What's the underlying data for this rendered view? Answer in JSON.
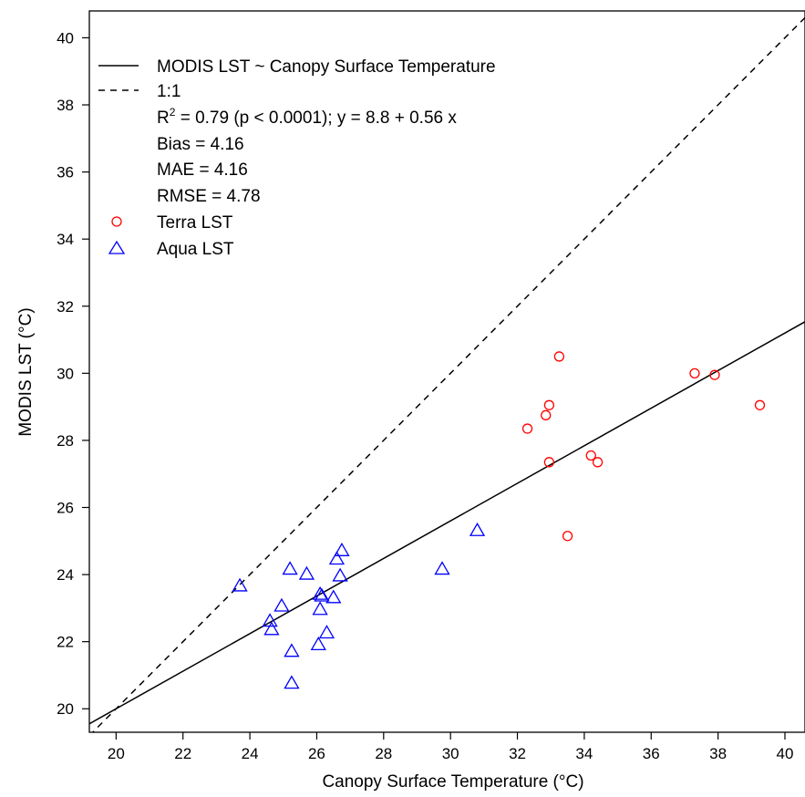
{
  "chart_data": {
    "type": "scatter",
    "xlabel": "Canopy Surface Temperature (°C)",
    "ylabel": "MODIS LST (°C)",
    "xlim": [
      19.2,
      40.6
    ],
    "ylim": [
      19.3,
      40.8
    ],
    "xticks": [
      20,
      22,
      24,
      26,
      28,
      30,
      32,
      34,
      36,
      38,
      40
    ],
    "yticks": [
      20,
      22,
      24,
      26,
      28,
      30,
      32,
      34,
      36,
      38,
      40
    ],
    "grid": false,
    "legend_position": "top-left",
    "series": [
      {
        "name": "Terra LST",
        "marker": "circle",
        "color": "#ff0000",
        "x": [
          32.3,
          32.85,
          32.95,
          32.95,
          33.25,
          33.5,
          34.2,
          34.4,
          37.3,
          37.9,
          39.25
        ],
        "y": [
          28.35,
          28.75,
          29.05,
          27.35,
          30.5,
          25.15,
          27.55,
          27.35,
          30.0,
          29.95,
          29.05
        ]
      },
      {
        "name": "Aqua LST",
        "marker": "triangle",
        "color": "#0000ff",
        "x": [
          23.7,
          24.6,
          24.65,
          24.95,
          25.2,
          25.25,
          25.25,
          25.7,
          26.05,
          26.1,
          26.1,
          26.15,
          26.3,
          26.5,
          26.6,
          26.7,
          26.75,
          29.75,
          30.8
        ],
        "y": [
          23.65,
          22.6,
          22.35,
          23.05,
          24.15,
          21.7,
          20.75,
          24.0,
          21.9,
          22.95,
          23.4,
          23.35,
          22.25,
          23.3,
          24.45,
          23.95,
          24.7,
          24.15,
          25.3
        ]
      }
    ],
    "lines": [
      {
        "name": "MODIS LST ~ Canopy Surface Temperature",
        "style": "solid",
        "intercept": 8.8,
        "slope": 0.56
      },
      {
        "name": "1:1",
        "style": "dashed",
        "intercept": 0,
        "slope": 1
      }
    ],
    "legend": {
      "solid_label": "MODIS LST ~ Canopy Surface Temperature",
      "dashed_label": "1:1",
      "r2_prefix": "R",
      "r2_sup": "2",
      "r2_rest": " = 0.79 (p < 0.0001); y = 8.8 + 0.56 x",
      "bias": "Bias = 4.16",
      "mae": "MAE = 4.16",
      "rmse": "RMSE = 4.78",
      "terra": "Terra LST",
      "aqua": "Aqua LST"
    }
  }
}
